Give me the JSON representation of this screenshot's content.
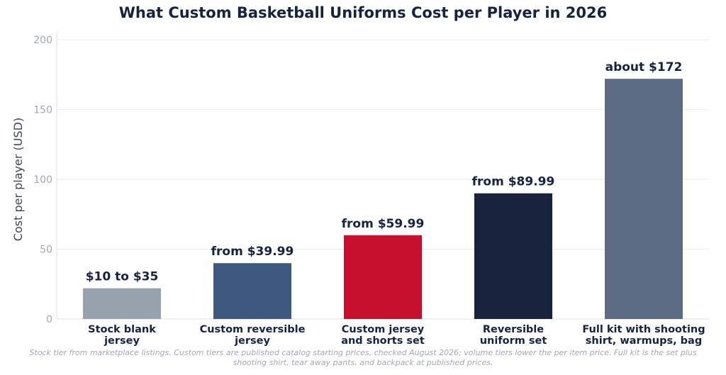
{
  "chart_data": {
    "type": "bar",
    "title": "What Custom Basketball Uniforms Cost per Player in 2026",
    "ylabel": "Cost per player (USD)",
    "xlabel": "",
    "ylim": [
      0,
      200
    ],
    "yticks": [
      0,
      50,
      100,
      150,
      200
    ],
    "grid": true,
    "legend": "none",
    "categories": [
      [
        "Stock blank",
        "jersey"
      ],
      [
        "Custom reversible",
        "jersey"
      ],
      [
        "Custom jersey",
        "and shorts set"
      ],
      [
        "Reversible",
        "uniform set"
      ],
      [
        "Full kit with shooting",
        "shirt, warmups, bag"
      ]
    ],
    "values": [
      22,
      39.99,
      59.99,
      89.99,
      172
    ],
    "data_labels": [
      "$10 to $35",
      "from $39.99",
      "from $59.99",
      "from $89.99",
      "about $172"
    ],
    "colors": [
      "#97a2ae",
      "#3e5a80",
      "#c8102e",
      "#17233d",
      "#5d6a83"
    ],
    "note": [
      "Stock tier from marketplace listings. Custom tiers are published catalog starting prices, checked August 2026; volume tiers lower the per item price. Full kit is the set plus",
      "shooting shirt, tear away pants, and backpack at published prices."
    ]
  }
}
